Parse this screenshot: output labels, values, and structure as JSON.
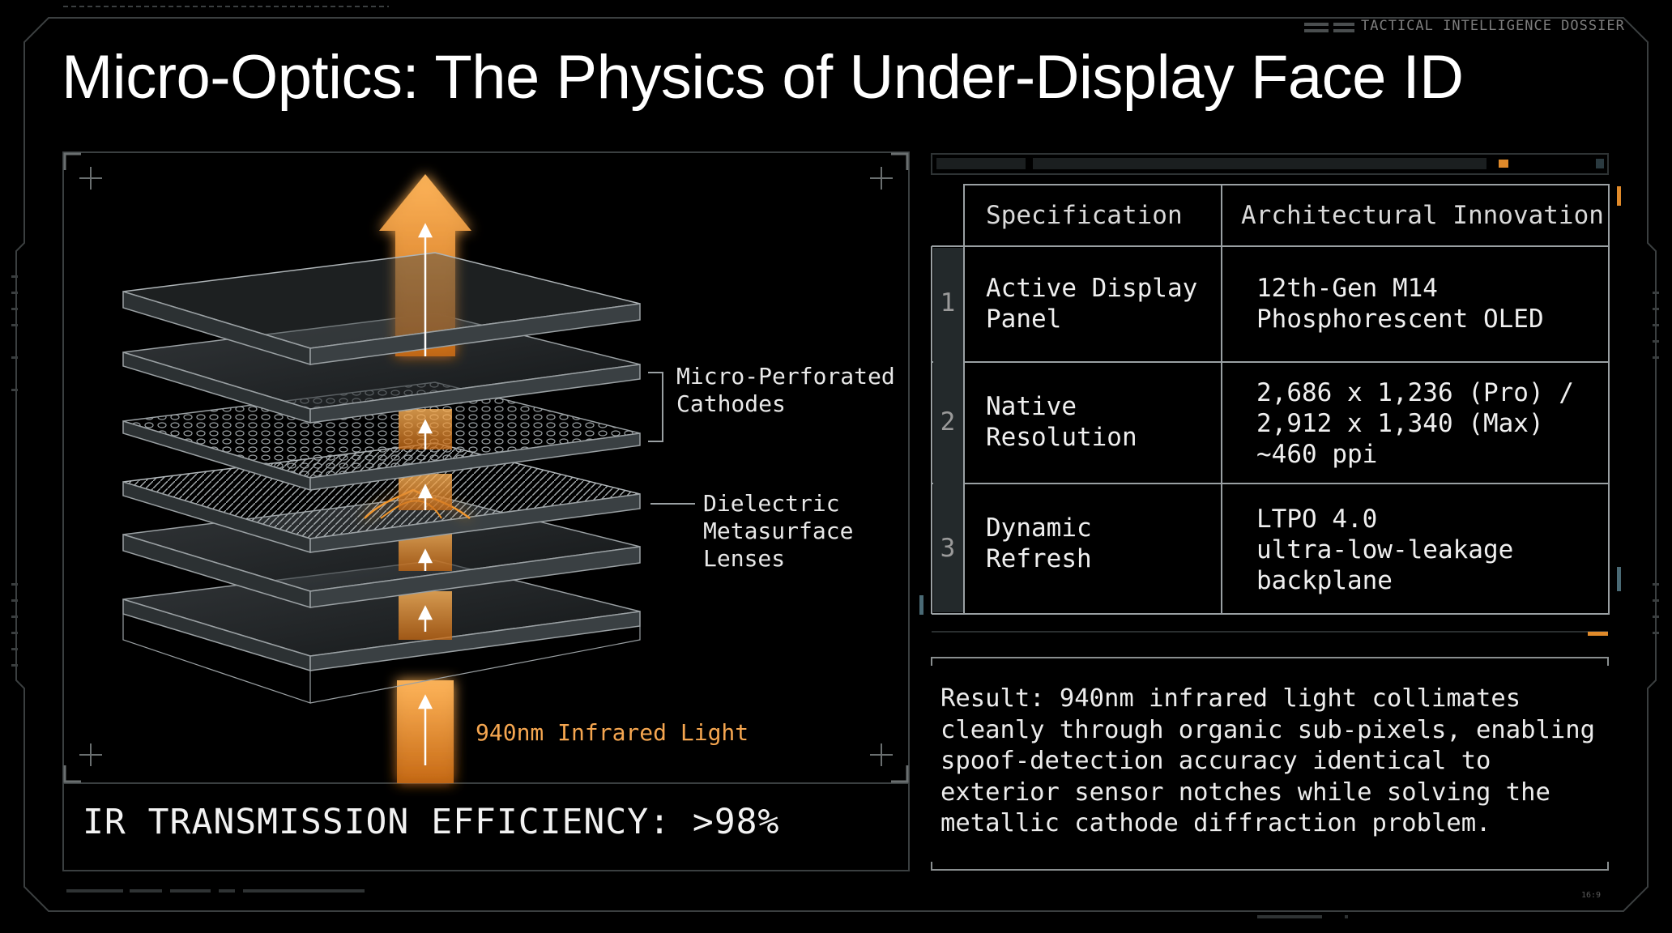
{
  "header": {
    "dossier_label": "TACTICAL INTELLIGENCE DOSSIER",
    "title": "Micro-Optics: The Physics of Under-Display Face ID"
  },
  "diagram": {
    "label_cathodes": "Micro-Perforated\nCathodes",
    "label_lenses": "Dielectric\nMetasurface\nLenses",
    "label_ir_light": "940nm Infrared Light",
    "efficiency_banner": "IR TRANSMISSION EFFICIENCY: >98%"
  },
  "spec_table": {
    "headers": [
      "Specification",
      "Architectural Innovation"
    ],
    "rows": [
      {
        "num": "1",
        "spec": "Active Display\nPanel",
        "innovation": "12th-Gen M14\nPhosphorescent OLED"
      },
      {
        "num": "2",
        "spec": "Native\nResolution",
        "innovation": "2,686 x 1,236 (Pro) /\n2,912 x 1,340 (Max)\n~460 ppi"
      },
      {
        "num": "3",
        "spec": "Dynamic\nRefresh",
        "innovation": "LTPO 4.0\nultra-low-leakage\nbackplane"
      }
    ]
  },
  "result": {
    "text": "Result: 940nm infrared light collimates\ncleanly through organic sub-pixels, enabling\nspoof-detection accuracy identical to\nexterior sensor notches while solving the\nmetallic cathode diffraction problem."
  },
  "footer": {
    "aspect_label": "16:9"
  },
  "colors": {
    "accent": "#f0962e",
    "background": "#000000",
    "frame": "#3a3f40"
  }
}
